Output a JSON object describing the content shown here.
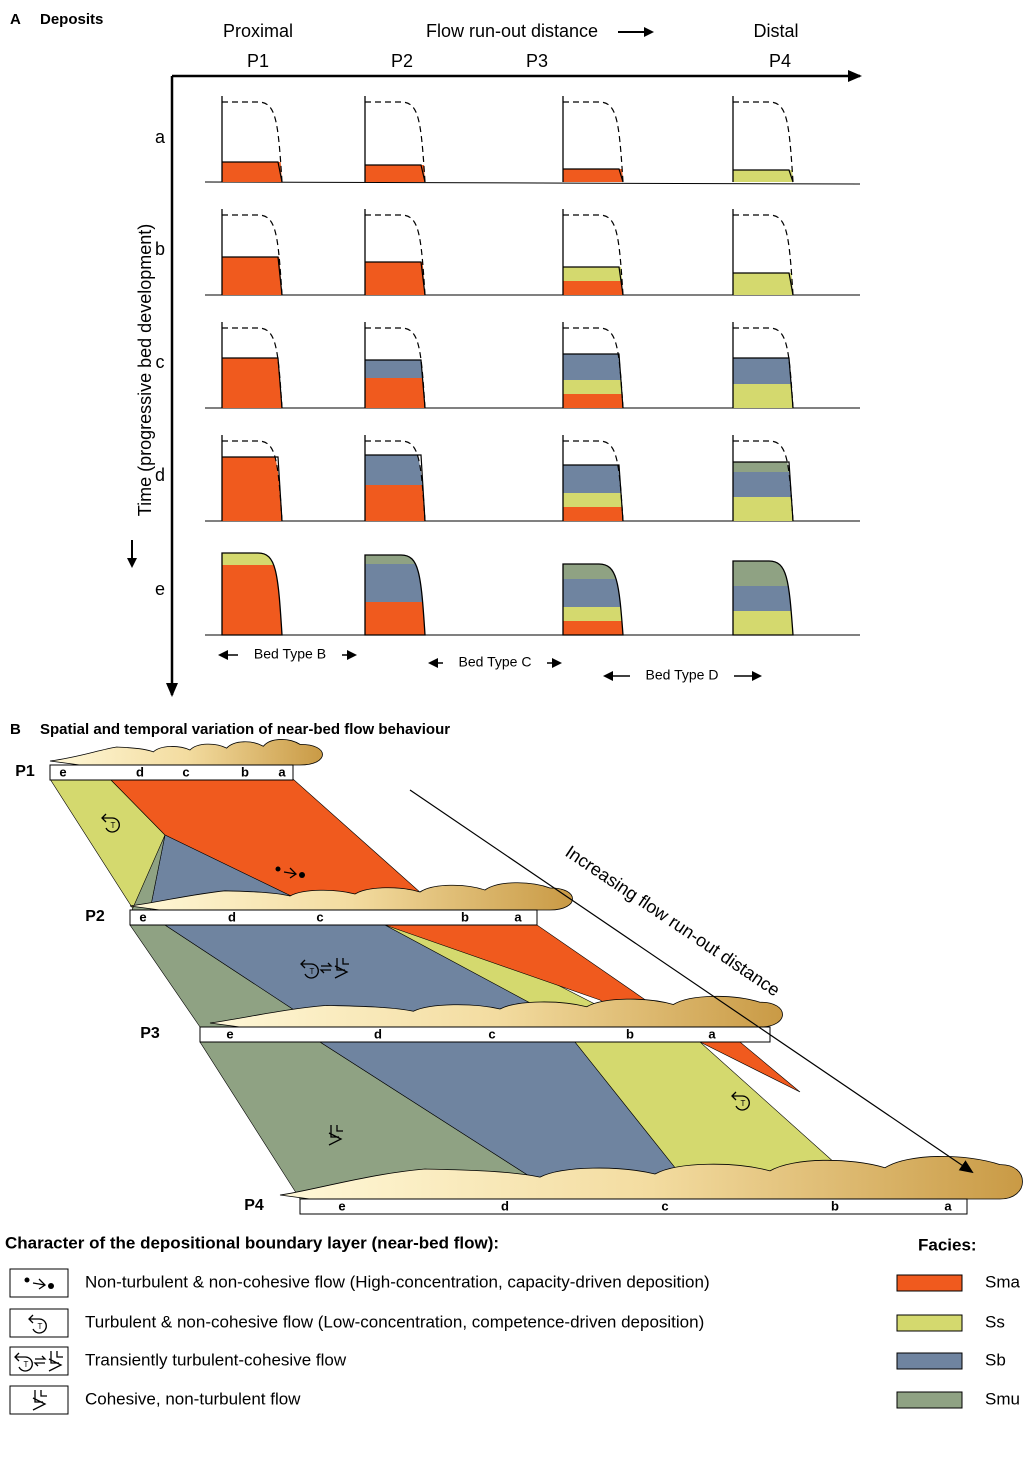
{
  "panel_a": {
    "label": "A",
    "title": "Deposits",
    "header": {
      "proximal": "Proximal",
      "flow": "Flow run-out distance",
      "distal": "Distal"
    },
    "columns": [
      "P1",
      "P2",
      "P3",
      "P4"
    ],
    "axis_label": "Time (progressive bed development)",
    "rows": [
      "a",
      "b",
      "c",
      "d",
      "e"
    ],
    "bed_types": [
      "Bed Type B",
      "Bed Type C",
      "Bed Type D"
    ]
  },
  "panel_b": {
    "label": "B",
    "title": "Spatial and temporal variation of near-bed flow behaviour",
    "arrow_label": "Increasing flow run-out distance",
    "profiles": [
      {
        "label": "P1",
        "divisions": [
          "e",
          "d",
          "c",
          "b",
          "a"
        ]
      },
      {
        "label": "P2",
        "divisions": [
          "e",
          "d",
          "c",
          "b",
          "a"
        ]
      },
      {
        "label": "P3",
        "divisions": [
          "e",
          "d",
          "c",
          "b",
          "a"
        ]
      },
      {
        "label": "P4",
        "divisions": [
          "e",
          "d",
          "c",
          "b",
          "a"
        ]
      }
    ]
  },
  "legend": {
    "title": "Character of the depositional boundary layer (near-bed flow):",
    "flow_types": [
      "Non-turbulent & non-cohesive flow (High-concentration, capacity-driven deposition)",
      "Turbulent & non-cohesive flow (Low-concentration, competence-driven deposition)",
      "Transiently turbulent-cohesive flow",
      "Cohesive, non-turbulent flow"
    ],
    "facies_title": "Facies:",
    "facies": [
      {
        "name": "Sma",
        "color": "#f05a1e"
      },
      {
        "name": "Ss",
        "color": "#d4d96e"
      },
      {
        "name": "Sb",
        "color": "#6f84a0"
      },
      {
        "name": "Smu",
        "color": "#8fa283"
      }
    ]
  }
}
